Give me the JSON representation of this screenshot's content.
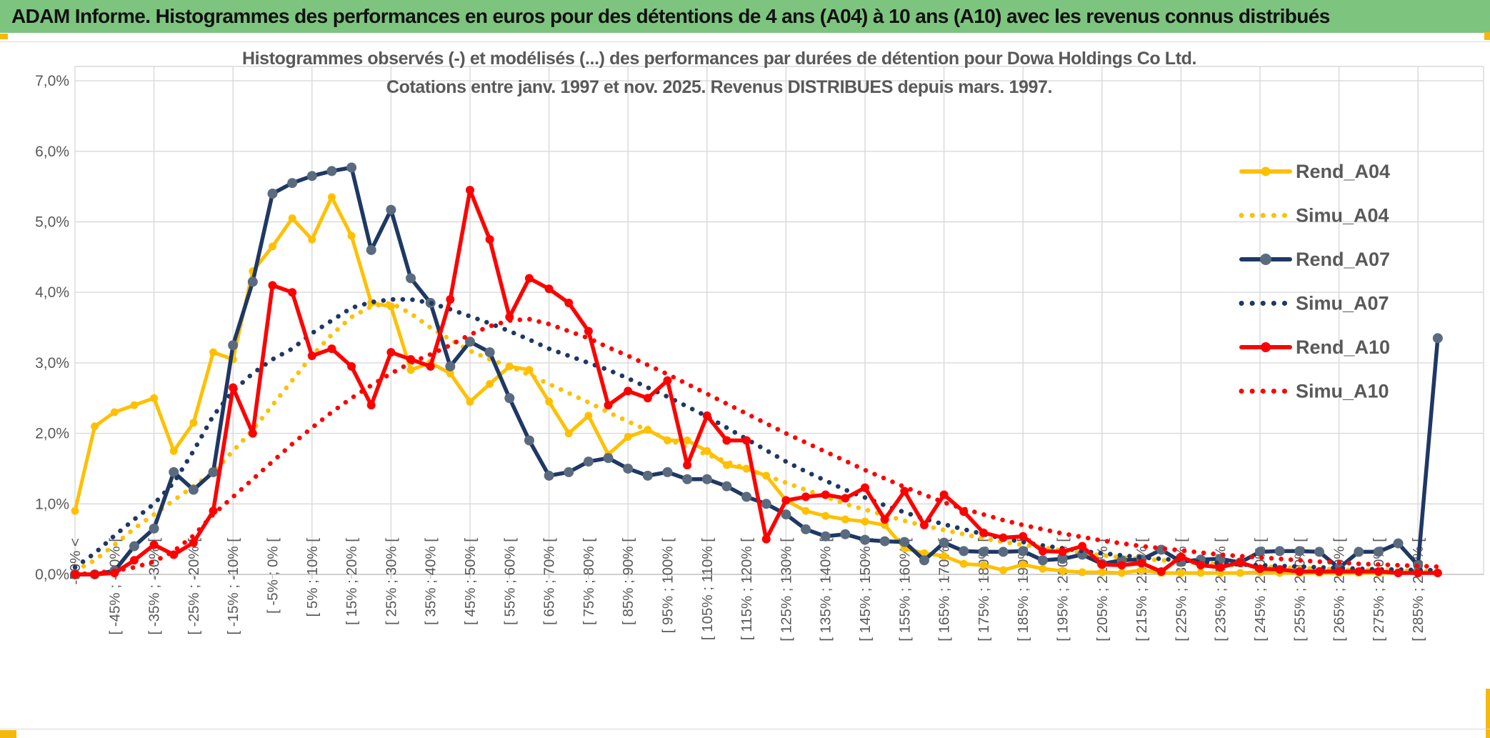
{
  "page": {
    "header_title": "ADAM Informe. Histogrammes des performances en euros pour des détentions de 4 ans (A04) à 10 ans (A10) avec les revenus connus distribués",
    "colors": {
      "header_green": "#7DC47F",
      "accent_gold": "#F5B80C",
      "grid": "#D9D9D9",
      "axis_line": "#BFBFBF",
      "text_gray": "#595959",
      "gold": "#FFC000",
      "navy": "#1F3864",
      "navy_marker": "#5B6B7F",
      "red": "#FF0000"
    }
  },
  "chart_data": {
    "type": "line",
    "title_line1": "Histogrammes observés (-) et modélisés (...) des performances par durées de détention pour Dowa Holdings Co Ltd.",
    "title_line2": "Cotations entre janv. 1997 et nov. 2025. Revenus DISTRIBUES depuis mars. 1997.",
    "legend_position": "right",
    "grid": true,
    "y_axis": {
      "min": 0,
      "max": 7,
      "tick_labels": [
        "0,0%",
        "1,0%",
        "2,0%",
        "3,0%",
        "4,0%",
        "5,0%",
        "6,0%",
        "7,0%"
      ]
    },
    "x_axis": {
      "n_categories": 70,
      "label_every": 2,
      "visible_labels": [
        "-50% <",
        "[ -45% ; -40% [",
        "[ -35% ; -30% [",
        "[ -25% ; -20% [",
        "[ -15% ; -10% [",
        "[ -5% ; 0% [",
        "[ 5% ; 10% [",
        "[ 15% ; 20% [",
        "[ 25% ; 30% [",
        "[ 35% ; 40% [",
        "[ 45% ; 50% [",
        "[ 55% ; 60% [",
        "[ 65% ; 70% [",
        "[ 75% ; 80% [",
        "[ 85% ; 90% [",
        "[ 95% ; 100% [",
        "[ 105% ; 110% [",
        "[ 115% ; 120% [",
        "[ 125% ; 130% [",
        "[ 135% ; 140% [",
        "[ 145% ; 150% [",
        "[ 155% ; 160% [",
        "[ 165% ; 170% [",
        "[ 175% ; 180% [",
        "[ 185% ; 190% [",
        "[ 195% ; 200% [",
        "[ 205% ; 210% [",
        "[ 215% ; 220% [",
        "[ 225% ; 230% [",
        "[ 235% ; 240% [",
        "[ 245% ; 250% [",
        "[ 255% ; 260% [",
        "[ 265% ; 270% [",
        "[ 275% ; 280% [",
        "[ 285% ; 290% ["
      ]
    },
    "series": [
      {
        "name": "Rend_A04",
        "style": "solid",
        "color": "#FFC000",
        "marker_color": "#FFC000",
        "marker_r": 5.5,
        "width": 5,
        "values": [
          0.9,
          2.1,
          2.3,
          2.4,
          2.5,
          1.75,
          2.15,
          3.15,
          3.05,
          4.3,
          4.65,
          5.05,
          4.75,
          5.35,
          4.8,
          3.85,
          3.8,
          2.9,
          3.0,
          2.85,
          2.45,
          2.7,
          2.95,
          2.9,
          2.45,
          2.0,
          2.25,
          1.7,
          1.95,
          2.05,
          1.9,
          1.9,
          1.75,
          1.55,
          1.5,
          1.4,
          1.05,
          0.9,
          0.83,
          0.78,
          0.75,
          0.7,
          0.37,
          0.3,
          0.26,
          0.15,
          0.13,
          0.06,
          0.14,
          0.08,
          0.05,
          0.03,
          0.03,
          0.02,
          0.06,
          0.02,
          0.02,
          0.02,
          0.02,
          0.02,
          0.03,
          0.02,
          0.02,
          0.02,
          0.02,
          0.02,
          0.02,
          0.02,
          0.02,
          0.02
        ]
      },
      {
        "name": "Simu_A04",
        "style": "dotted",
        "color": "#FFC000",
        "width": 6.5,
        "values": [
          0.05,
          0.2,
          0.42,
          0.65,
          0.85,
          1.05,
          1.25,
          1.45,
          1.75,
          2.05,
          2.4,
          2.75,
          3.1,
          3.4,
          3.65,
          3.8,
          3.85,
          3.7,
          3.5,
          3.33,
          3.17,
          3.05,
          2.95,
          2.83,
          2.7,
          2.57,
          2.44,
          2.3,
          2.17,
          2.04,
          1.92,
          1.8,
          1.7,
          1.6,
          1.5,
          1.4,
          1.3,
          1.2,
          1.1,
          1.0,
          0.92,
          0.84,
          0.76,
          0.69,
          0.63,
          0.57,
          0.51,
          0.46,
          0.42,
          0.38,
          0.34,
          0.3,
          0.27,
          0.24,
          0.22,
          0.2,
          0.18,
          0.16,
          0.14,
          0.13,
          0.11,
          0.1,
          0.09,
          0.08,
          0.07,
          0.06,
          0.06,
          0.05,
          0.05,
          0.04
        ]
      },
      {
        "name": "Rend_A07",
        "style": "solid",
        "color": "#1F3864",
        "marker_color": "#5B6B7F",
        "marker_r": 7,
        "width": 5.5,
        "values": [
          0.0,
          0.0,
          0.05,
          0.4,
          0.65,
          1.45,
          1.2,
          1.45,
          3.25,
          4.15,
          5.4,
          5.55,
          5.65,
          5.72,
          5.77,
          4.6,
          5.17,
          4.2,
          3.85,
          2.95,
          3.3,
          3.15,
          2.5,
          1.9,
          1.4,
          1.45,
          1.6,
          1.65,
          1.5,
          1.4,
          1.45,
          1.35,
          1.35,
          1.25,
          1.1,
          1.0,
          0.85,
          0.64,
          0.54,
          0.57,
          0.49,
          0.47,
          0.46,
          0.2,
          0.45,
          0.33,
          0.32,
          0.32,
          0.33,
          0.2,
          0.22,
          0.28,
          0.15,
          0.2,
          0.21,
          0.35,
          0.18,
          0.21,
          0.22,
          0.17,
          0.32,
          0.33,
          0.33,
          0.32,
          0.09,
          0.32,
          0.32,
          0.44,
          0.13,
          3.35
        ]
      },
      {
        "name": "Simu_A07",
        "style": "dotted",
        "color": "#1F3864",
        "width": 6.5,
        "values": [
          0.1,
          0.3,
          0.55,
          0.78,
          1.0,
          1.3,
          1.75,
          2.25,
          2.6,
          2.85,
          3.05,
          3.2,
          3.42,
          3.6,
          3.78,
          3.86,
          3.9,
          3.9,
          3.85,
          3.76,
          3.66,
          3.56,
          3.45,
          3.33,
          3.2,
          3.1,
          3.0,
          2.9,
          2.78,
          2.65,
          2.52,
          2.38,
          2.24,
          2.08,
          1.92,
          1.76,
          1.6,
          1.46,
          1.33,
          1.2,
          1.09,
          0.98,
          0.88,
          0.79,
          0.71,
          0.64,
          0.57,
          0.51,
          0.46,
          0.41,
          0.37,
          0.33,
          0.3,
          0.27,
          0.24,
          0.22,
          0.2,
          0.18,
          0.16,
          0.14,
          0.13,
          0.12,
          0.11,
          0.1,
          0.09,
          0.08,
          0.07,
          0.07,
          0.06,
          0.06
        ]
      },
      {
        "name": "Rend_A10",
        "style": "solid",
        "color": "#FF0000",
        "marker_color": "#FF0000",
        "marker_r": 6,
        "width": 5.5,
        "values": [
          0.0,
          0.0,
          0.02,
          0.2,
          0.42,
          0.28,
          0.45,
          0.9,
          2.65,
          2.0,
          4.1,
          4.0,
          3.1,
          3.2,
          2.95,
          2.4,
          3.15,
          3.05,
          2.95,
          3.9,
          5.45,
          4.75,
          3.65,
          4.2,
          4.05,
          3.85,
          3.45,
          2.4,
          2.6,
          2.5,
          2.75,
          1.55,
          2.25,
          1.9,
          1.9,
          0.5,
          1.05,
          1.1,
          1.13,
          1.08,
          1.23,
          0.78,
          1.18,
          0.7,
          1.13,
          0.89,
          0.59,
          0.52,
          0.54,
          0.33,
          0.32,
          0.4,
          0.14,
          0.13,
          0.16,
          0.04,
          0.25,
          0.13,
          0.1,
          0.17,
          0.08,
          0.07,
          0.04,
          0.04,
          0.04,
          0.04,
          0.04,
          0.02,
          0.02,
          0.02
        ]
      },
      {
        "name": "Simu_A10",
        "style": "dotted",
        "color": "#FF0000",
        "width": 6.5,
        "values": [
          0.0,
          0.02,
          0.05,
          0.1,
          0.18,
          0.33,
          0.55,
          0.85,
          1.1,
          1.35,
          1.6,
          1.85,
          2.08,
          2.3,
          2.5,
          2.68,
          2.85,
          3.0,
          3.12,
          3.25,
          3.4,
          3.52,
          3.6,
          3.62,
          3.55,
          3.45,
          3.35,
          3.22,
          3.1,
          2.97,
          2.84,
          2.7,
          2.56,
          2.42,
          2.28,
          2.14,
          2.0,
          1.87,
          1.74,
          1.61,
          1.48,
          1.36,
          1.24,
          1.13,
          1.02,
          0.93,
          0.85,
          0.77,
          0.7,
          0.64,
          0.58,
          0.53,
          0.48,
          0.44,
          0.4,
          0.37,
          0.34,
          0.31,
          0.28,
          0.26,
          0.24,
          0.22,
          0.2,
          0.18,
          0.17,
          0.15,
          0.14,
          0.13,
          0.12,
          0.11
        ]
      }
    ]
  }
}
